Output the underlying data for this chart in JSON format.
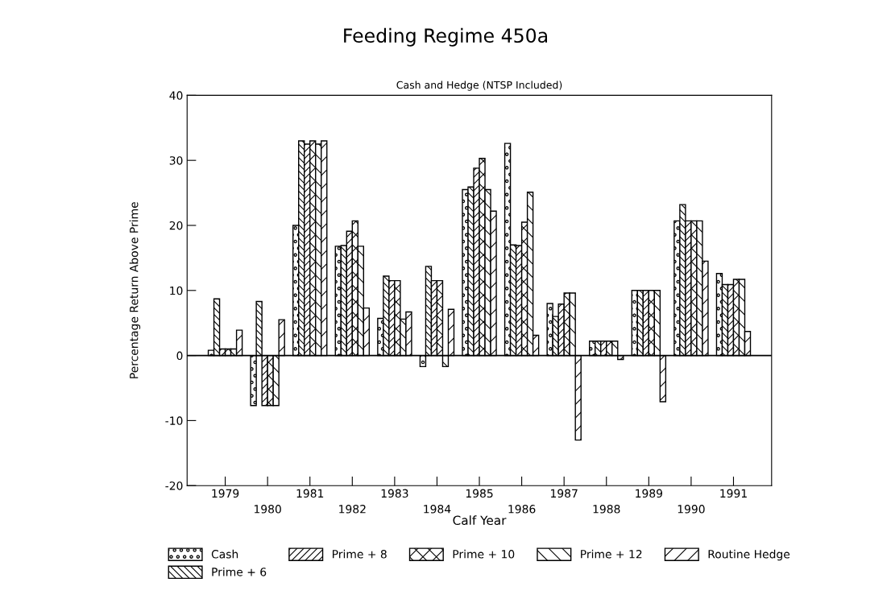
{
  "chart_data": {
    "type": "bar",
    "title": "Feeding Regime 450a",
    "subtitle": "Cash and Hedge (NTSP Included)",
    "xlabel": "Calf Year",
    "ylabel": "Percentage Return Above Prime",
    "categories": [
      "1979",
      "1980",
      "1981",
      "1982",
      "1983",
      "1984",
      "1985",
      "1986",
      "1987",
      "1988",
      "1989",
      "1990",
      "1991"
    ],
    "series": [
      {
        "name": "Cash",
        "color": "#000000",
        "values": [
          0.8,
          -7.7,
          20.0,
          16.8,
          5.7,
          -1.7,
          25.5,
          32.6,
          8.0,
          2.2,
          10.0,
          20.7,
          12.6
        ]
      },
      {
        "name": "Prime + 6",
        "color": "#000000",
        "values": [
          8.7,
          8.3,
          33.0,
          16.9,
          12.2,
          13.7,
          25.9,
          17.0,
          6.0,
          2.2,
          10.0,
          23.2,
          10.9
        ]
      },
      {
        "name": "Prime + 8",
        "color": "#000000",
        "values": [
          1.0,
          -7.7,
          32.5,
          19.1,
          11.5,
          11.5,
          28.8,
          16.9,
          7.9,
          2.2,
          10.0,
          20.7,
          10.9
        ]
      },
      {
        "name": "Prime + 10",
        "color": "#000000",
        "values": [
          1.0,
          -7.7,
          33.0,
          20.7,
          11.5,
          11.5,
          30.3,
          20.5,
          9.6,
          2.2,
          10.0,
          20.7,
          11.7
        ]
      },
      {
        "name": "Prime + 12",
        "color": "#000000",
        "values": [
          1.0,
          -7.7,
          32.5,
          16.8,
          5.6,
          -1.7,
          25.5,
          25.1,
          9.6,
          2.2,
          10.0,
          20.7,
          11.7
        ]
      },
      {
        "name": "Routine Hedge",
        "color": "#000000",
        "values": [
          3.9,
          5.5,
          33.0,
          7.3,
          6.7,
          7.1,
          22.2,
          3.1,
          -13.0,
          -0.6,
          -7.1,
          14.5,
          3.7
        ]
      }
    ],
    "ylim": [
      -20,
      40
    ],
    "yticks": [
      -20,
      -10,
      0,
      10,
      20,
      30,
      40
    ],
    "ref_lines": [
      {
        "axis": "y",
        "value": 0,
        "label": null
      }
    ],
    "grid": false,
    "legend": "bottom"
  }
}
